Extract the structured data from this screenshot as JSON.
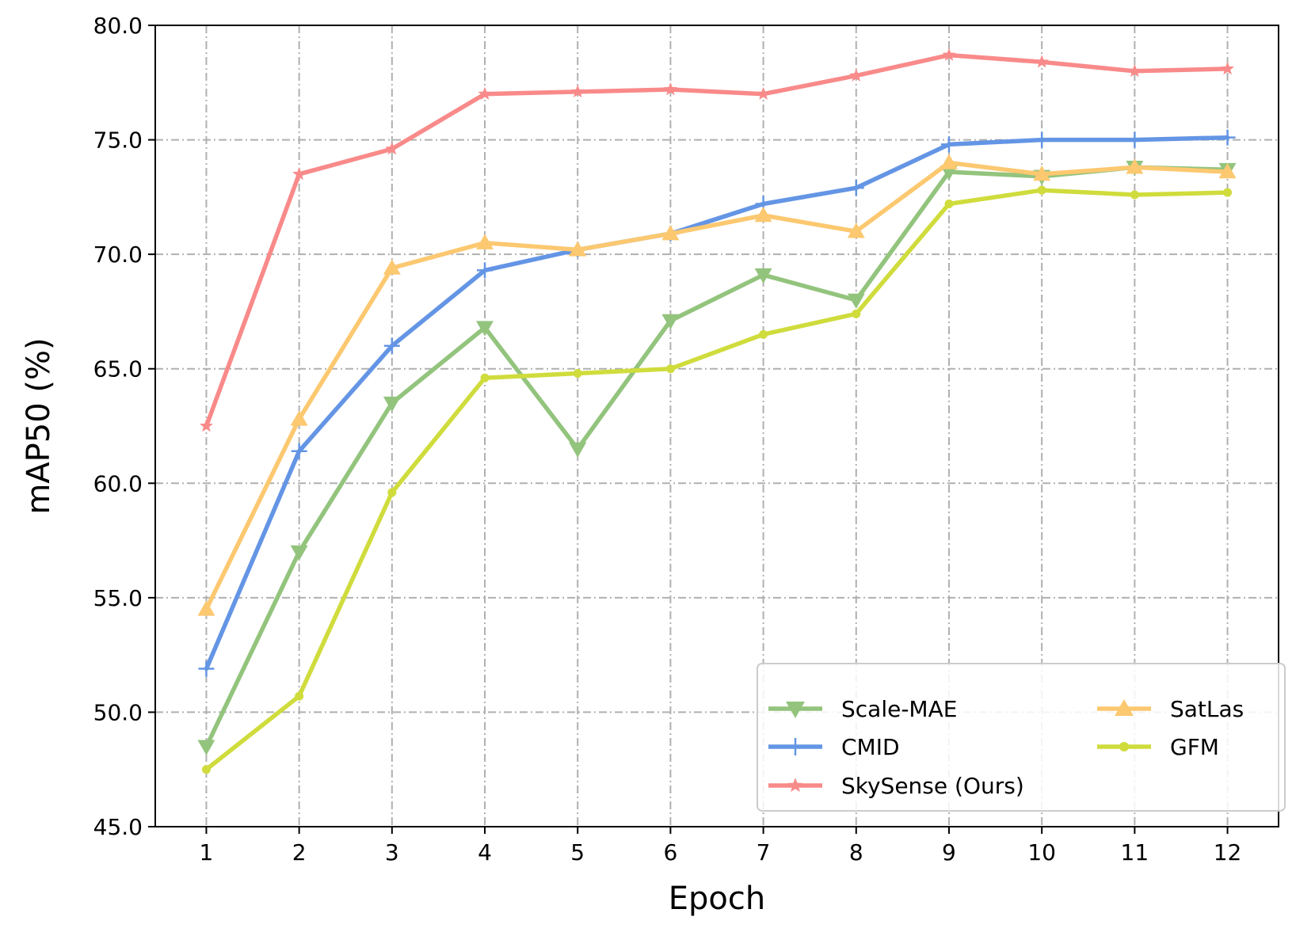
{
  "chart_data": {
    "type": "line",
    "xlabel": "Epoch",
    "ylabel": "mAP50 (%)",
    "x": [
      1,
      2,
      3,
      4,
      5,
      6,
      7,
      8,
      9,
      10,
      11,
      12
    ],
    "xticks": [
      "1",
      "2",
      "3",
      "4",
      "5",
      "6",
      "7",
      "8",
      "9",
      "10",
      "11",
      "12"
    ],
    "xlim": [
      0.45,
      12.55
    ],
    "ylim": [
      45.0,
      80.0
    ],
    "yticks": [
      "45.0",
      "50.0",
      "55.0",
      "60.0",
      "65.0",
      "70.0",
      "75.0",
      "80.0"
    ],
    "grid": true,
    "legend_position": "bottom-right",
    "series": [
      {
        "name": "Scale-MAE",
        "color": "#93c47d",
        "marker": "triangle-down",
        "values": [
          48.5,
          57.0,
          63.5,
          66.8,
          61.5,
          67.1,
          69.1,
          68.0,
          73.6,
          73.4,
          73.8,
          73.7
        ]
      },
      {
        "name": "CMID",
        "color": "#6495e5",
        "marker": "plus",
        "values": [
          51.9,
          61.4,
          66.0,
          69.3,
          70.2,
          70.9,
          72.2,
          72.9,
          74.8,
          75.0,
          75.0,
          75.1
        ]
      },
      {
        "name": "SkySense (Ours)",
        "color": "#f98a8a",
        "marker": "star",
        "values": [
          62.5,
          73.5,
          74.6,
          77.0,
          77.1,
          77.2,
          77.0,
          77.8,
          78.7,
          78.4,
          78.0,
          78.1
        ]
      },
      {
        "name": "SatLas",
        "color": "#fcc870",
        "marker": "triangle-up",
        "values": [
          54.5,
          62.8,
          69.4,
          70.5,
          70.2,
          70.9,
          71.7,
          71.0,
          74.0,
          73.5,
          73.8,
          73.6
        ]
      },
      {
        "name": "GFM",
        "color": "#cfdc3c",
        "marker": "circle",
        "values": [
          47.5,
          50.7,
          59.6,
          64.6,
          64.8,
          65.0,
          66.5,
          67.4,
          72.2,
          72.8,
          72.6,
          72.7
        ]
      }
    ]
  }
}
